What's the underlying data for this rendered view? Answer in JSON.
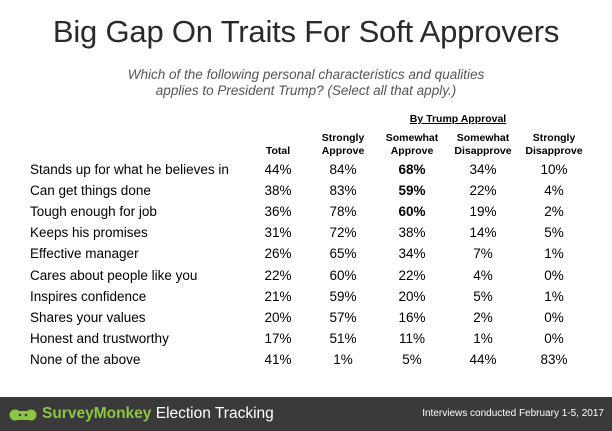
{
  "title": "Big Gap On Traits For Soft Approvers",
  "subtitle_lines": [
    "Which of the following personal characteristics and qualities",
    "applies to President Trump? (Select all that apply.)"
  ],
  "group_label": "By Trump Approval",
  "columns": [
    {
      "line1": "",
      "line2": "Total"
    },
    {
      "line1": "Strongly",
      "line2": "Approve"
    },
    {
      "line1": "Somewhat",
      "line2": "Approve"
    },
    {
      "line1": "Somewhat",
      "line2": "Disapprove"
    },
    {
      "line1": "Strongly",
      "line2": "Disapprove"
    }
  ],
  "rows": [
    {
      "label": "Stands up for what he believes in",
      "values": [
        "44%",
        "84%",
        "68%",
        "34%",
        "10%"
      ]
    },
    {
      "label": "Can get things done",
      "values": [
        "38%",
        "83%",
        "59%",
        "22%",
        "4%"
      ]
    },
    {
      "label": "Tough enough for job",
      "values": [
        "36%",
        "78%",
        "60%",
        "19%",
        "2%"
      ]
    },
    {
      "label": "Keeps his promises",
      "values": [
        "31%",
        "72%",
        "38%",
        "14%",
        "5%"
      ]
    },
    {
      "label": "Effective manager",
      "values": [
        "26%",
        "65%",
        "34%",
        "7%",
        "1%"
      ]
    },
    {
      "label": "Cares about people like you",
      "values": [
        "22%",
        "60%",
        "22%",
        "4%",
        "0%"
      ]
    },
    {
      "label": "Inspires confidence",
      "values": [
        "21%",
        "59%",
        "20%",
        "5%",
        "1%"
      ]
    },
    {
      "label": "Shares your values",
      "values": [
        "20%",
        "57%",
        "16%",
        "2%",
        "0%"
      ]
    },
    {
      "label": "Honest and trustworthy",
      "values": [
        "17%",
        "51%",
        "11%",
        "1%",
        "0%"
      ]
    },
    {
      "label": "None of the above",
      "values": [
        "41%",
        "1%",
        "5%",
        "44%",
        "83%"
      ]
    }
  ],
  "bold_cells": [
    [
      0,
      2
    ],
    [
      1,
      2
    ],
    [
      2,
      2
    ]
  ],
  "footer": {
    "brand_name": "SurveyMonkey",
    "brand_suffix": " Election Tracking",
    "note": "Interviews conducted February 1-5, 2017",
    "brand_color": "#8dc63f",
    "background_color": "#3a3a3a"
  }
}
